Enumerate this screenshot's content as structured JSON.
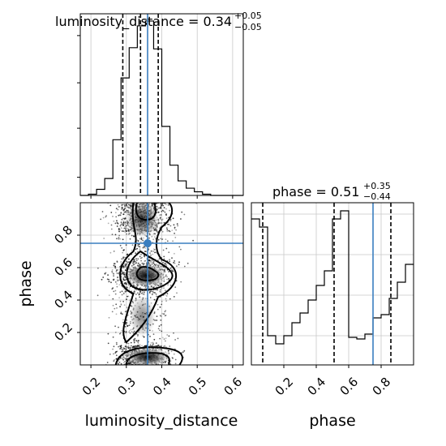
{
  "chart_data": {
    "type": "corner",
    "parameters": [
      "luminosity_distance",
      "phase"
    ],
    "truth": {
      "luminosity_distance": 0.36,
      "phase": 0.75
    },
    "luminosity_distance": {
      "title_main": "luminosity_distance = 0.34",
      "title_sup": "+0.05",
      "title_sub": "−0.05",
      "xlabel": "luminosity_distance",
      "xlim": [
        0.17,
        0.63
      ],
      "xticks": [
        "0.2",
        "0.3",
        "0.4",
        "0.5",
        "0.6"
      ],
      "xtick_values": [
        0.2,
        0.3,
        0.4,
        0.5,
        0.6
      ],
      "quantiles": [
        0.29,
        0.34,
        0.39
      ],
      "hist_edges": [
        0.17,
        0.193,
        0.216,
        0.239,
        0.262,
        0.285,
        0.308,
        0.331,
        0.354,
        0.377,
        0.4,
        0.423,
        0.446,
        0.469,
        0.492,
        0.515,
        0.538,
        0.561,
        0.584,
        0.607,
        0.63
      ],
      "hist_counts": [
        0,
        1,
        5,
        14,
        46,
        97,
        122,
        140,
        144,
        121,
        57,
        25,
        12,
        6,
        3,
        1,
        0,
        0,
        0,
        0
      ],
      "hist_ymax": 150
    },
    "phase": {
      "title_main": "phase = 0.51",
      "title_sup": "+0.35",
      "title_sub": "−0.44",
      "xlabel": "phase",
      "ylabel": "phase",
      "lim": [
        0.0,
        1.0
      ],
      "ticks": [
        "0.2",
        "0.4",
        "0.6",
        "0.8"
      ],
      "tick_values": [
        0.2,
        0.4,
        0.6,
        0.8
      ],
      "quantiles": [
        0.07,
        0.51,
        0.86
      ],
      "hist_edges": [
        0.0,
        0.05,
        0.1,
        0.15,
        0.2,
        0.25,
        0.3,
        0.35,
        0.4,
        0.45,
        0.5,
        0.55,
        0.6,
        0.65,
        0.7,
        0.75,
        0.8,
        0.85,
        0.9,
        0.95,
        1.0
      ],
      "hist_counts": [
        90,
        85,
        18,
        13,
        18,
        26,
        32,
        40,
        49,
        58,
        90,
        95,
        17,
        16,
        19,
        29,
        31,
        41,
        51,
        62
      ],
      "hist_ymax": 100
    }
  }
}
